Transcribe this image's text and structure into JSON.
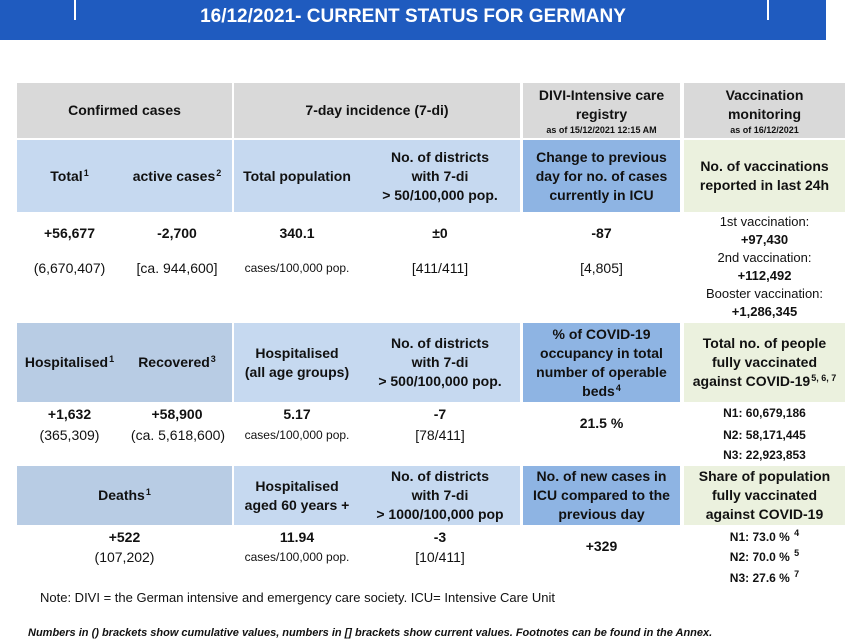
{
  "header": {
    "title": "16/12/2021- CURRENT STATUS FOR GERMANY"
  },
  "columns": {
    "confirmed": "Confirmed cases",
    "incidence": "7-day incidence (7-di)",
    "divi": {
      "title": [
        "DIVI-Intensive care",
        "registry"
      ],
      "date": "as of 15/12/2021 12:15 AM"
    },
    "vaccination": {
      "title": [
        "Vaccination",
        "monitoring"
      ],
      "date": "as of 16/12/2021"
    }
  },
  "section1": {
    "total": {
      "label": "Total",
      "sup": "1",
      "value": "+56,677",
      "cumulative": "(6,670,407)"
    },
    "active": {
      "label": "active cases",
      "sup": "2",
      "value": "-2,700",
      "current": "[ca. 944,600]"
    },
    "incidence": {
      "label": "Total population",
      "value": "340.1",
      "unit": "cases/100,000 pop."
    },
    "districts": {
      "label": [
        "No. of districts",
        "with 7-di",
        "> 50/100,000 pop."
      ],
      "value": "±0",
      "current": "[411/411]"
    },
    "icu_change": {
      "label": [
        "Change to previous",
        "day for no. of cases",
        "currently in ICU"
      ],
      "value": "-87",
      "current": "[4,805]"
    },
    "vaccinations": {
      "label": [
        "No. of vaccinations",
        "reported in last 24h"
      ],
      "items": [
        {
          "label": "1st vaccination:",
          "value": "+97,430"
        },
        {
          "label": "2nd vaccination:",
          "value": "+112,492"
        },
        {
          "label": "Booster vaccination:",
          "value": "+1,286,345"
        }
      ]
    }
  },
  "section2": {
    "hospitalised": {
      "label": "Hospitalised",
      "sup": "1",
      "value": "+1,632",
      "cumulative": "(365,309)"
    },
    "recovered": {
      "label": "Recovered",
      "sup": "3",
      "value": "+58,900",
      "cumulative": "(ca. 5,618,600)"
    },
    "incidence": {
      "label": [
        "Hospitalised",
        "(all age groups)"
      ],
      "value": "5.17",
      "unit": "cases/100,000 pop."
    },
    "districts": {
      "label": [
        "No. of districts",
        "with 7-di",
        "> 500/100,000 pop."
      ],
      "value": "-7",
      "current": "[78/411]"
    },
    "icu_occupancy": {
      "label": [
        "% of COVID-19",
        "occupancy in total",
        "number of operable",
        "beds"
      ],
      "sup": "4",
      "value": "21.5 %"
    },
    "fully_vaccinated": {
      "label": [
        "Total no. of people",
        "fully vaccinated",
        "against COVID-19"
      ],
      "sup": "5, 6, 7",
      "items": [
        "N1: 60,679,186",
        "N2: 58,171,445",
        "N3: 22,923,853"
      ]
    }
  },
  "section3": {
    "deaths": {
      "label": "Deaths",
      "sup": "1",
      "value": "+522",
      "cumulative": "(107,202)"
    },
    "incidence": {
      "label": [
        "Hospitalised",
        "aged 60 years +"
      ],
      "value": "11.94",
      "unit": "cases/100,000 pop."
    },
    "districts": {
      "label": [
        "No. of districts",
        "with 7-di",
        "> 1000/100,000 pop"
      ],
      "value": "-3",
      "current": "[10/411]"
    },
    "icu_new": {
      "label": [
        "No. of new cases in",
        "ICU compared to the",
        "previous day"
      ],
      "value": "+329"
    },
    "share": {
      "label": [
        "Share of population",
        "fully vaccinated",
        "against COVID-19"
      ],
      "items": [
        {
          "text": "N1: 73.0 %",
          "sup": "4"
        },
        {
          "text": "N2: 70.0 %",
          "sup": "5"
        },
        {
          "text": "N3: 27.6 %",
          "sup": "7"
        }
      ]
    }
  },
  "note": "Note: DIVI = the German intensive and emergency care society. ICU= Intensive Care Unit",
  "footer": "Numbers in () brackets show cumulative values, numbers in [] brackets show current values. Footnotes can be found in the Annex."
}
